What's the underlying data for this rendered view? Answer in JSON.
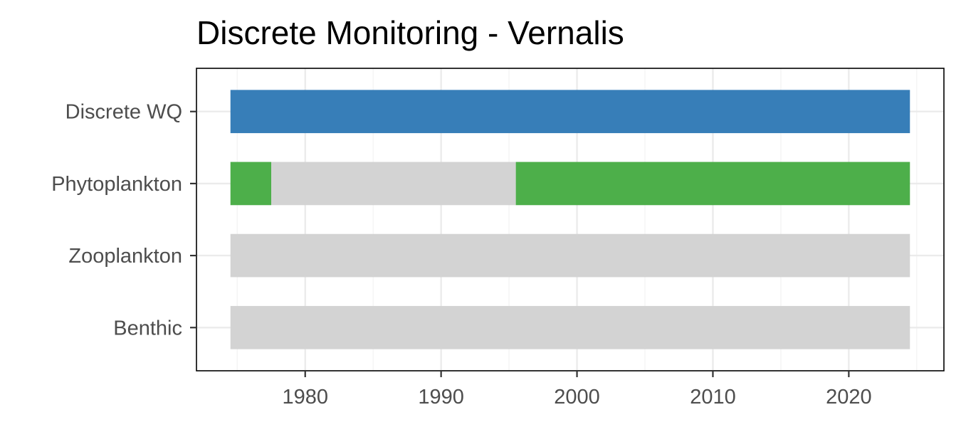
{
  "chart_data": {
    "type": "bar",
    "orientation": "horizontal",
    "title": "Discrete Monitoring - Vernalis",
    "xlabel": "",
    "ylabel": "",
    "xlim": [
      1972,
      2027
    ],
    "x_ticks": [
      1980,
      1990,
      2000,
      2010,
      2020
    ],
    "x_minor_ticks": [
      1975,
      1985,
      1995,
      2005,
      2015,
      2025
    ],
    "grid": true,
    "legend": "none",
    "categories": [
      "Discrete WQ",
      "Phytoplankton",
      "Zooplankton",
      "Benthic"
    ],
    "segments": [
      {
        "category": "Discrete WQ",
        "start": 1974.5,
        "end": 2024.5,
        "status": "sampled",
        "color": "#377EB8"
      },
      {
        "category": "Phytoplankton",
        "start": 1974.5,
        "end": 1977.5,
        "status": "sampled",
        "color": "#4DAF4A"
      },
      {
        "category": "Phytoplankton",
        "start": 1977.5,
        "end": 1995.5,
        "status": "not sampled",
        "color": "#D3D3D3"
      },
      {
        "category": "Phytoplankton",
        "start": 1995.5,
        "end": 2024.5,
        "status": "sampled",
        "color": "#4DAF4A"
      },
      {
        "category": "Zooplankton",
        "start": 1974.5,
        "end": 2024.5,
        "status": "not sampled",
        "color": "#D3D3D3"
      },
      {
        "category": "Benthic",
        "start": 1974.5,
        "end": 2024.5,
        "status": "not sampled",
        "color": "#D3D3D3"
      }
    ]
  }
}
